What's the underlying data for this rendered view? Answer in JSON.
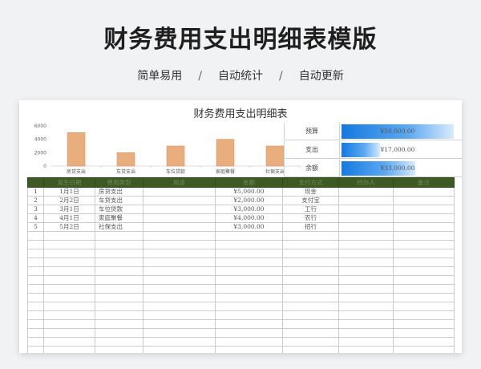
{
  "hero": {
    "title": "财务费用支出明细表模版",
    "tags": [
      "简单易用",
      "自动统计",
      "自动更新"
    ],
    "separator": "/"
  },
  "sheet": {
    "title": "财务费用支出明细表"
  },
  "chart_data": {
    "type": "bar",
    "categories": [
      "房贷支出",
      "车贷支出",
      "车位贷款",
      "家庭聚餐",
      "社保支出"
    ],
    "values": [
      5000,
      2000,
      3000,
      4000,
      3000
    ],
    "ylim": [
      0,
      6000
    ],
    "yticks": [
      0,
      2000,
      4000,
      6000
    ],
    "bar_color": "#e8ae7d",
    "bar_border": "#d7955f",
    "grid": false
  },
  "summary": [
    {
      "label": "预算",
      "value": "¥50,000.00",
      "fraction": 1.0
    },
    {
      "label": "支出",
      "value": "¥17,000.00",
      "fraction": 0.34
    },
    {
      "label": "余额",
      "value": "¥33,000.00",
      "fraction": 0.66
    }
  ],
  "table": {
    "headers": [
      "",
      "发生日期",
      "费用类型",
      "用途",
      "金额",
      "支付方式",
      "经办人",
      "备注"
    ],
    "rows": [
      [
        "1",
        "1月1日",
        "房贷支出",
        "",
        "¥5,000.00",
        "现金",
        "",
        ""
      ],
      [
        "2",
        "2月2日",
        "车贷支出",
        "",
        "¥2,000.00",
        "支付宝",
        "",
        ""
      ],
      [
        "3",
        "3月1日",
        "车位贷款",
        "",
        "¥3,000.00",
        "工行",
        "",
        ""
      ],
      [
        "4",
        "4月1日",
        "家庭聚餐",
        "",
        "¥4,000.00",
        "农行",
        "",
        ""
      ],
      [
        "5",
        "5月2日",
        "社保支出",
        "",
        "¥3,000.00",
        "招行",
        "",
        ""
      ]
    ],
    "empty_rows": 14
  },
  "colors": {
    "header_bg": "#3d5a24",
    "summary_fill": "#1479e0",
    "background": "#f1f2f4"
  }
}
